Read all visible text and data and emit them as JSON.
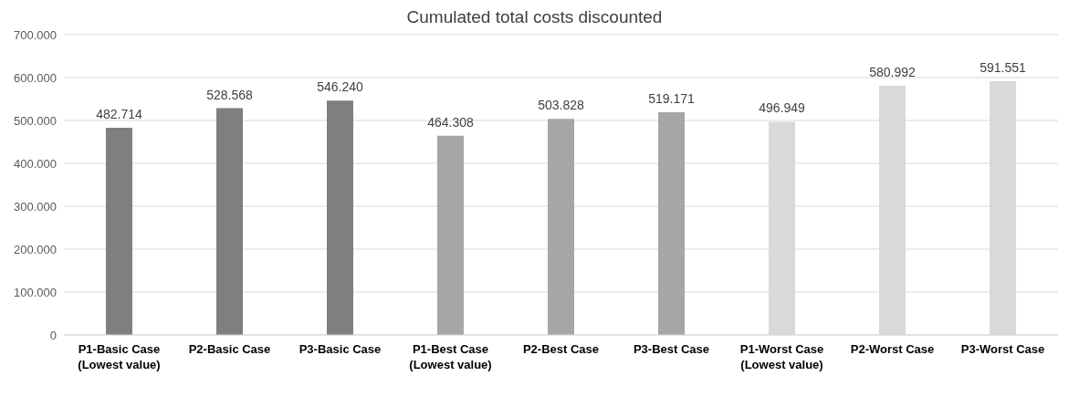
{
  "chart_data": {
    "type": "bar",
    "title": "Cumulated total costs discounted",
    "categories": [
      "P1-Basic Case\n(Lowest value)",
      "P2-Basic Case",
      "P3-Basic Case",
      "P1-Best Case\n(Lowest value)",
      "P2-Best Case",
      "P3-Best Case",
      "P1-Worst Case\n(Lowest value)",
      "P2-Worst Case",
      "P3-Worst Case"
    ],
    "values": [
      482714,
      528568,
      546240,
      464308,
      503828,
      519171,
      496949,
      580992,
      591551
    ],
    "value_labels": [
      "482.714",
      "528.568",
      "546.240",
      "464.308",
      "503.828",
      "519.171",
      "496.949",
      "580.992",
      "591.551"
    ],
    "colors": [
      "#7f7f7f",
      "#7f7f7f",
      "#7f7f7f",
      "#a6a6a6",
      "#a6a6a6",
      "#a6a6a6",
      "#d9d9d9",
      "#d9d9d9",
      "#d9d9d9"
    ],
    "ylim": [
      0,
      700000
    ],
    "yticks": [
      {
        "value": 0,
        "label": "0"
      },
      {
        "value": 100000,
        "label": "100.000"
      },
      {
        "value": 200000,
        "label": "200.000"
      },
      {
        "value": 300000,
        "label": "300.000"
      },
      {
        "value": 400000,
        "label": "400.000"
      },
      {
        "value": 500000,
        "label": "500.000"
      },
      {
        "value": 600000,
        "label": "600.000"
      },
      {
        "value": 700000,
        "label": "700.000"
      }
    ],
    "grid": "y"
  }
}
